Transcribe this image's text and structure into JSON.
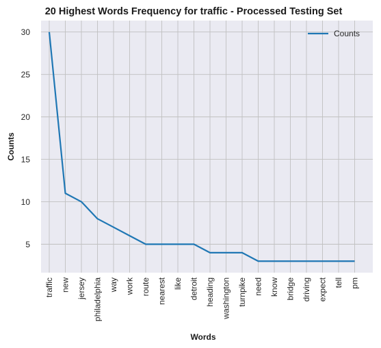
{
  "chart_data": {
    "type": "line",
    "title": "20 Highest Words Frequency for traffic - Processed Testing Set",
    "xlabel": "Words",
    "ylabel": "Counts",
    "categories": [
      "traffic",
      "new",
      "jersey",
      "philadelphia",
      "way",
      "work",
      "route",
      "nearest",
      "like",
      "detroit",
      "heading",
      "washington",
      "turnpike",
      "need",
      "know",
      "bridge",
      "driving",
      "expect",
      "tell",
      "pm"
    ],
    "series": [
      {
        "name": "Counts",
        "values": [
          30,
          11,
          10,
          8,
          7,
          6,
          5,
          5,
          5,
          5,
          4,
          4,
          4,
          3,
          3,
          3,
          3,
          3,
          3,
          3
        ]
      }
    ],
    "ylim": [
      1.65,
      31.35
    ],
    "yticks": [
      5,
      10,
      15,
      20,
      25,
      30
    ],
    "grid": true,
    "legend_position": "top-right",
    "colors": {
      "line": "#1f77b4",
      "background": "#eaeaf2",
      "grid": "#c0c0c0"
    }
  }
}
